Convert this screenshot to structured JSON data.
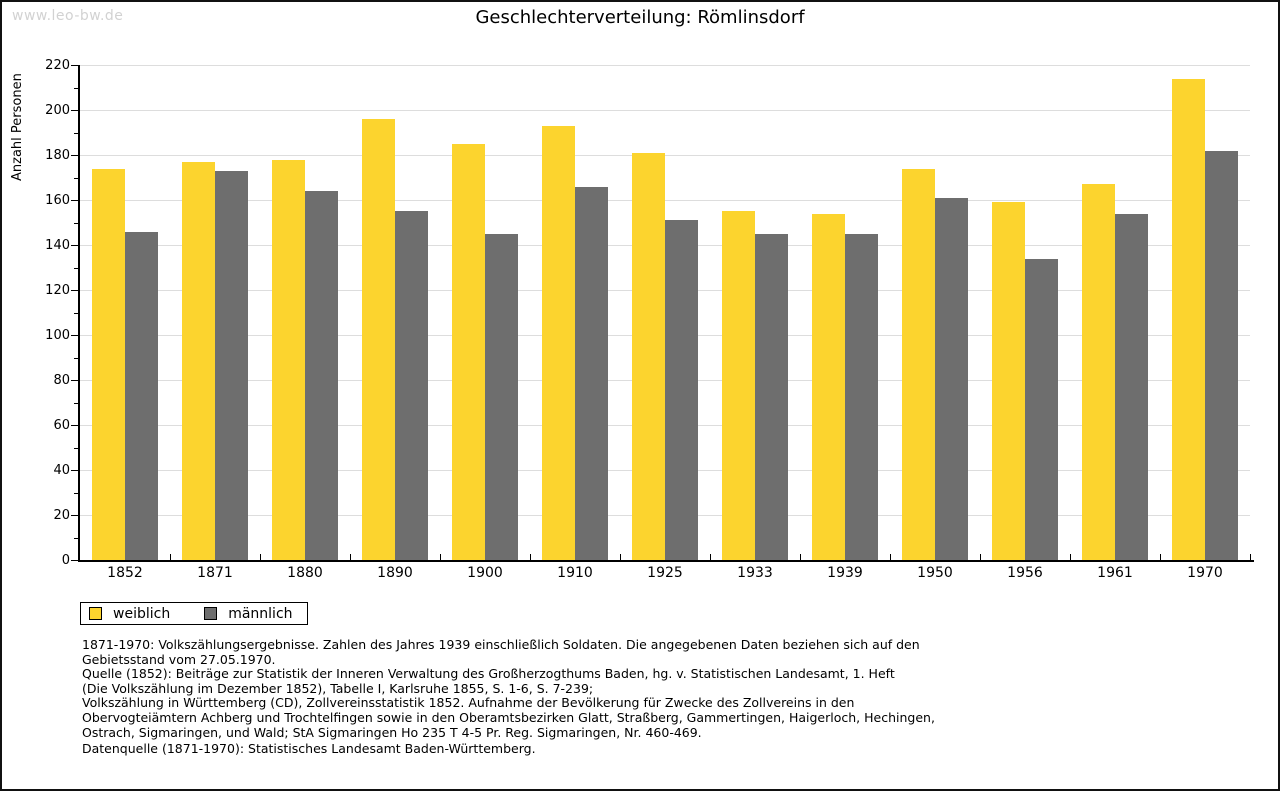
{
  "watermark": "www.leo-bw.de",
  "title": "Geschlechterverteilung: Römlinsdorf",
  "chart_data": {
    "type": "bar",
    "title": "Geschlechterverteilung: Römlinsdorf",
    "xlabel": "",
    "ylabel": "Anzahl Personen",
    "ylim": [
      0,
      220
    ],
    "ytick_step": 20,
    "yminor_step": 10,
    "grid": true,
    "legend_position": "bottom-left",
    "categories": [
      "1852",
      "1871",
      "1880",
      "1890",
      "1900",
      "1910",
      "1925",
      "1933",
      "1939",
      "1950",
      "1956",
      "1961",
      "1970"
    ],
    "series": [
      {
        "name": "weiblich",
        "color": "#fcd42e",
        "values": [
          174,
          177,
          178,
          196,
          185,
          193,
          181,
          155,
          154,
          174,
          159,
          167,
          214
        ]
      },
      {
        "name": "männlich",
        "color": "#6e6e6e",
        "values": [
          146,
          173,
          164,
          155,
          145,
          166,
          151,
          145,
          145,
          161,
          134,
          154,
          182
        ]
      }
    ]
  },
  "colors": {
    "weiblich": "#fcd42e",
    "maennlich": "#6e6e6e",
    "gridline": "#dddddd",
    "watermark": "#d2d2d2"
  },
  "footer": {
    "notes": [
      "1871-1970: Volkszählungsergebnisse. Zahlen des Jahres 1939 einschließlich Soldaten. Die angegebenen Daten beziehen sich auf den",
      "Gebietsstand vom 27.05.1970.",
      "Quelle (1852): Beiträge zur Statistik der Inneren Verwaltung des Großherzogthums Baden, hg. v. Statistischen Landesamt, 1. Heft",
      "(Die Volkszählung im Dezember 1852), Tabelle I, Karlsruhe 1855, S. 1-6, S. 7-239;",
      "Volkszählung in Württemberg (CD), Zollvereinsstatistik 1852. Aufnahme der Bevölkerung für Zwecke des Zollvereins in den",
      "Obervogteiämtern Achberg und Trochtelfingen sowie in den Oberamtsbezirken Glatt, Straßberg, Gammertingen, Haigerloch, Hechingen,",
      "Ostrach, Sigmaringen, und Wald; StA Sigmaringen Ho 235 T 4-5 Pr. Reg. Sigmaringen, Nr. 460-469."
    ],
    "datasource": "Datenquelle (1871-1970): Statistisches Landesamt Baden-Württemberg."
  }
}
